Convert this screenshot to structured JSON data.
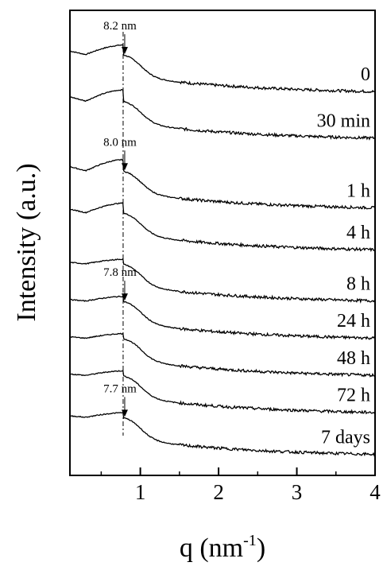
{
  "chart_data": {
    "type": "line",
    "xlabel": "q (nm",
    "xlabel_sup": "-1",
    "xlabel_close": ")",
    "ylabel": "Intensity (a.u.)",
    "xlim": [
      0.1,
      4.0
    ],
    "xticks": [
      {
        "value": 1,
        "label": "1"
      },
      {
        "value": 2,
        "label": "2"
      },
      {
        "value": 3,
        "label": "3"
      },
      {
        "value": 4,
        "label": "4"
      }
    ],
    "yticks": "none",
    "grid": false,
    "legend": "none",
    "reference_line_q": 0.78,
    "series": [
      {
        "name": "0",
        "offset": 0.86,
        "knee": 0.62,
        "peak": 0.05
      },
      {
        "name": "30 min",
        "offset": 0.76,
        "knee": 0.6,
        "peak": 0.06
      },
      {
        "name": "1 h",
        "offset": 0.61,
        "knee": 0.62,
        "peak": 0.06
      },
      {
        "name": "4 h",
        "offset": 0.52,
        "knee": 0.6,
        "peak": 0.05
      },
      {
        "name": "8 h",
        "offset": 0.41,
        "knee": 0.74,
        "peak": 0.02
      },
      {
        "name": "24 h",
        "offset": 0.33,
        "knee": 0.66,
        "peak": 0.02
      },
      {
        "name": "48 h",
        "offset": 0.25,
        "knee": 0.66,
        "peak": 0.02
      },
      {
        "name": "72 h",
        "offset": 0.17,
        "knee": 0.66,
        "peak": 0.02
      },
      {
        "name": "7 days",
        "offset": 0.08,
        "knee": 0.62,
        "peak": 0.02
      }
    ],
    "annotations": [
      {
        "text": "8.2 nm",
        "q": 0.78,
        "series_index": 0
      },
      {
        "text": "8.0 nm",
        "q": 0.78,
        "series_index": 2
      },
      {
        "text": "7.8 nm",
        "q": 0.78,
        "series_index": 5
      },
      {
        "text": "7.7 nm",
        "q": 0.78,
        "series_index": 8
      }
    ]
  }
}
